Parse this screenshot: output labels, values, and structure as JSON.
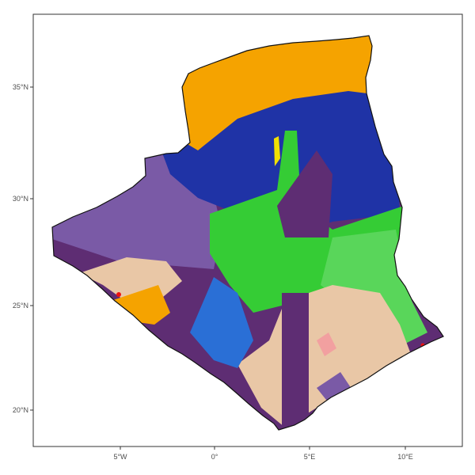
{
  "map": {
    "region_colors": {
      "orange": "#f5a300",
      "dark-purple": "#5e2d73",
      "mid-purple": "#7a5aa6",
      "deep-blue": "#1f33a6",
      "sky-blue": "#2a6fd6",
      "green": "#35cc35",
      "light-green": "#59d65a",
      "tan": "#e9c7a6",
      "pink": "#f2a0a0",
      "yellow": "#f1e000",
      "red": "#ee1111"
    },
    "y_ticks": [
      "35°N",
      "30°N",
      "25°N",
      "20°N"
    ],
    "x_ticks": [
      "5°W",
      "0°",
      "5°E",
      "10°E"
    ],
    "axes": {
      "x_range": [
        -9.5,
        12.5
      ],
      "y_range": [
        18.5,
        38.3
      ]
    }
  }
}
